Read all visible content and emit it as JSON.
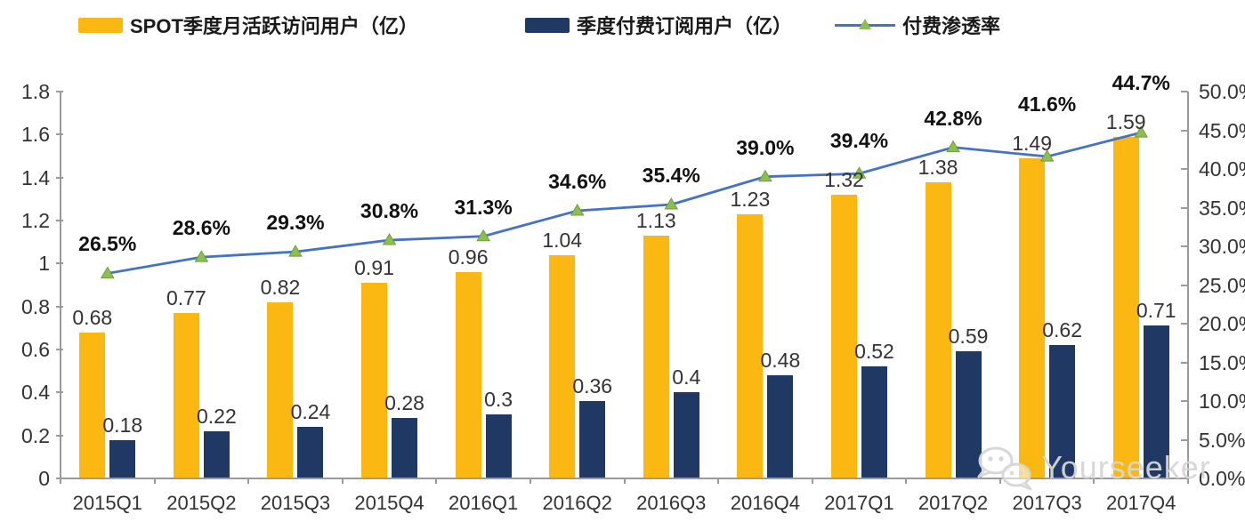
{
  "legend": [
    {
      "label": "SPOT季度月活跃访问用户（亿）",
      "swatch": "bar",
      "color": "#FCB812"
    },
    {
      "label": "季度付费订阅用户（亿）",
      "swatch": "bar",
      "color": "#1F3864"
    },
    {
      "label": "付费渗透率",
      "swatch": "line",
      "color": "#4472C4",
      "marker_color": "#8CBE50"
    }
  ],
  "chart_data": {
    "type": "combo",
    "categories": [
      "2015Q1",
      "2015Q2",
      "2015Q3",
      "2015Q4",
      "2016Q1",
      "2016Q2",
      "2016Q3",
      "2016Q4",
      "2017Q1",
      "2017Q2",
      "2017Q3",
      "2017Q4"
    ],
    "series": [
      {
        "name": "SPOT季度月活跃访问用户（亿）",
        "type": "bar",
        "color": "#FCB812",
        "values": [
          0.68,
          0.77,
          0.82,
          0.91,
          0.96,
          1.04,
          1.13,
          1.23,
          1.32,
          1.38,
          1.49,
          1.59
        ],
        "labels": [
          "0.68",
          "0.77",
          "0.82",
          "0.91",
          "0.96",
          "1.04",
          "1.13",
          "1.23",
          "1.32",
          "1.38",
          "1.49",
          "1.59"
        ]
      },
      {
        "name": "季度付费订阅用户（亿）",
        "type": "bar",
        "color": "#1F3864",
        "values": [
          0.18,
          0.22,
          0.24,
          0.28,
          0.3,
          0.36,
          0.4,
          0.48,
          0.52,
          0.59,
          0.62,
          0.71
        ],
        "labels": [
          "0.18",
          "0.22",
          "0.24",
          "0.28",
          "0.3",
          "0.36",
          "0.4",
          "0.48",
          "0.52",
          "0.59",
          "0.62",
          "0.71"
        ]
      },
      {
        "name": "付费渗透率",
        "type": "line",
        "color": "#4472C4",
        "marker": "triangle",
        "marker_color": "#8CBE50",
        "values": [
          26.5,
          28.6,
          29.3,
          30.8,
          31.3,
          34.6,
          35.4,
          39.0,
          39.4,
          42.8,
          41.6,
          44.7
        ],
        "labels": [
          "26.5%",
          "28.6%",
          "29.3%",
          "30.8%",
          "31.3%",
          "34.6%",
          "35.4%",
          "39.0%",
          "39.4%",
          "42.8%",
          "41.6%",
          "44.7%"
        ]
      }
    ],
    "left_axis": {
      "min": 0,
      "max": 1.8,
      "step": 0.2,
      "ticks": [
        "1.8",
        "1.6",
        "1.4",
        "1.2",
        "1",
        "0.8",
        "0.6",
        "0.4",
        "0.2",
        "0"
      ]
    },
    "right_axis": {
      "min": 0,
      "max": 50,
      "step": 5,
      "ticks": [
        "50.0%",
        "45.0%",
        "40.0%",
        "35.0%",
        "30.0%",
        "25.0%",
        "20.0%",
        "15.0%",
        "10.0%",
        "5.0%",
        "0.0%"
      ]
    },
    "grid": false,
    "legend_position": "top",
    "title": ""
  },
  "watermark": {
    "text": "Yourseeker"
  }
}
